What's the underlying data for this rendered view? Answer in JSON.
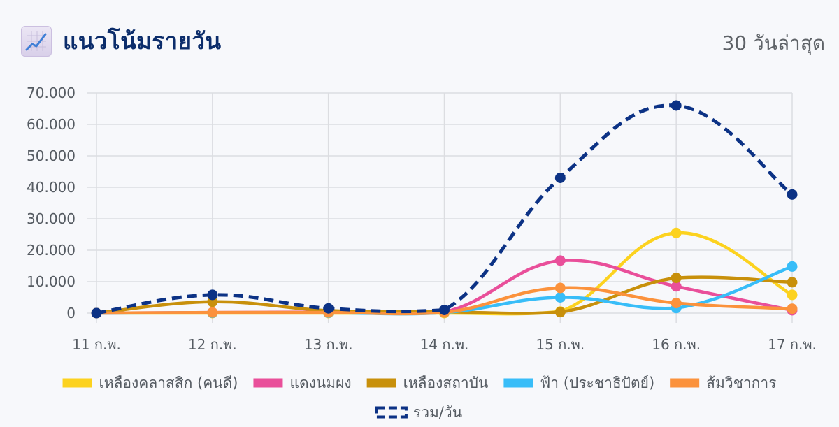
{
  "header": {
    "title": "แนวโน้มรายวัน",
    "range_label": "30 วันล่าสุด",
    "icon": "chart-increasing-icon"
  },
  "chart_data": {
    "type": "line",
    "categories": [
      "11 ก.พ.",
      "12 ก.พ.",
      "13 ก.พ.",
      "14 ก.พ.",
      "15 ก.พ.",
      "16 ก.พ.",
      "17 ก.พ."
    ],
    "ylim": [
      0,
      70000
    ],
    "yticks": [
      0,
      10000,
      20000,
      30000,
      40000,
      50000,
      60000,
      70000
    ],
    "ytick_labels": [
      "0",
      "10.000",
      "20.000",
      "30.000",
      "40.000",
      "50.000",
      "60.000",
      "70.000"
    ],
    "grid": true,
    "legend_position": "bottom",
    "series": [
      {
        "name": "เหลืองคลาสสิก (คนดี)",
        "color": "#fcd21f",
        "dashed": false,
        "values": [
          0,
          0,
          0,
          0,
          500,
          25500,
          5800
        ]
      },
      {
        "name": "แดงนมผง",
        "color": "#e94f9a",
        "dashed": false,
        "values": [
          0,
          200,
          300,
          300,
          16700,
          8500,
          900
        ]
      },
      {
        "name": "เหลืองสถาบัน",
        "color": "#c8900b",
        "dashed": false,
        "values": [
          0,
          3600,
          800,
          400,
          300,
          11200,
          9800
        ]
      },
      {
        "name": "ฟ้า (ประชาธิปัตย์)",
        "color": "#38bdf8",
        "dashed": false,
        "values": [
          0,
          100,
          100,
          200,
          5000,
          1600,
          14800
        ]
      },
      {
        "name": "ส้มวิชาการ",
        "color": "#fb923c",
        "dashed": false,
        "values": [
          0,
          200,
          200,
          200,
          8000,
          3200,
          1400
        ]
      },
      {
        "name": "รวม/วัน",
        "color": "#0c3285",
        "dashed": true,
        "values": [
          0,
          5800,
          1500,
          1000,
          43000,
          66000,
          37700
        ]
      }
    ]
  }
}
